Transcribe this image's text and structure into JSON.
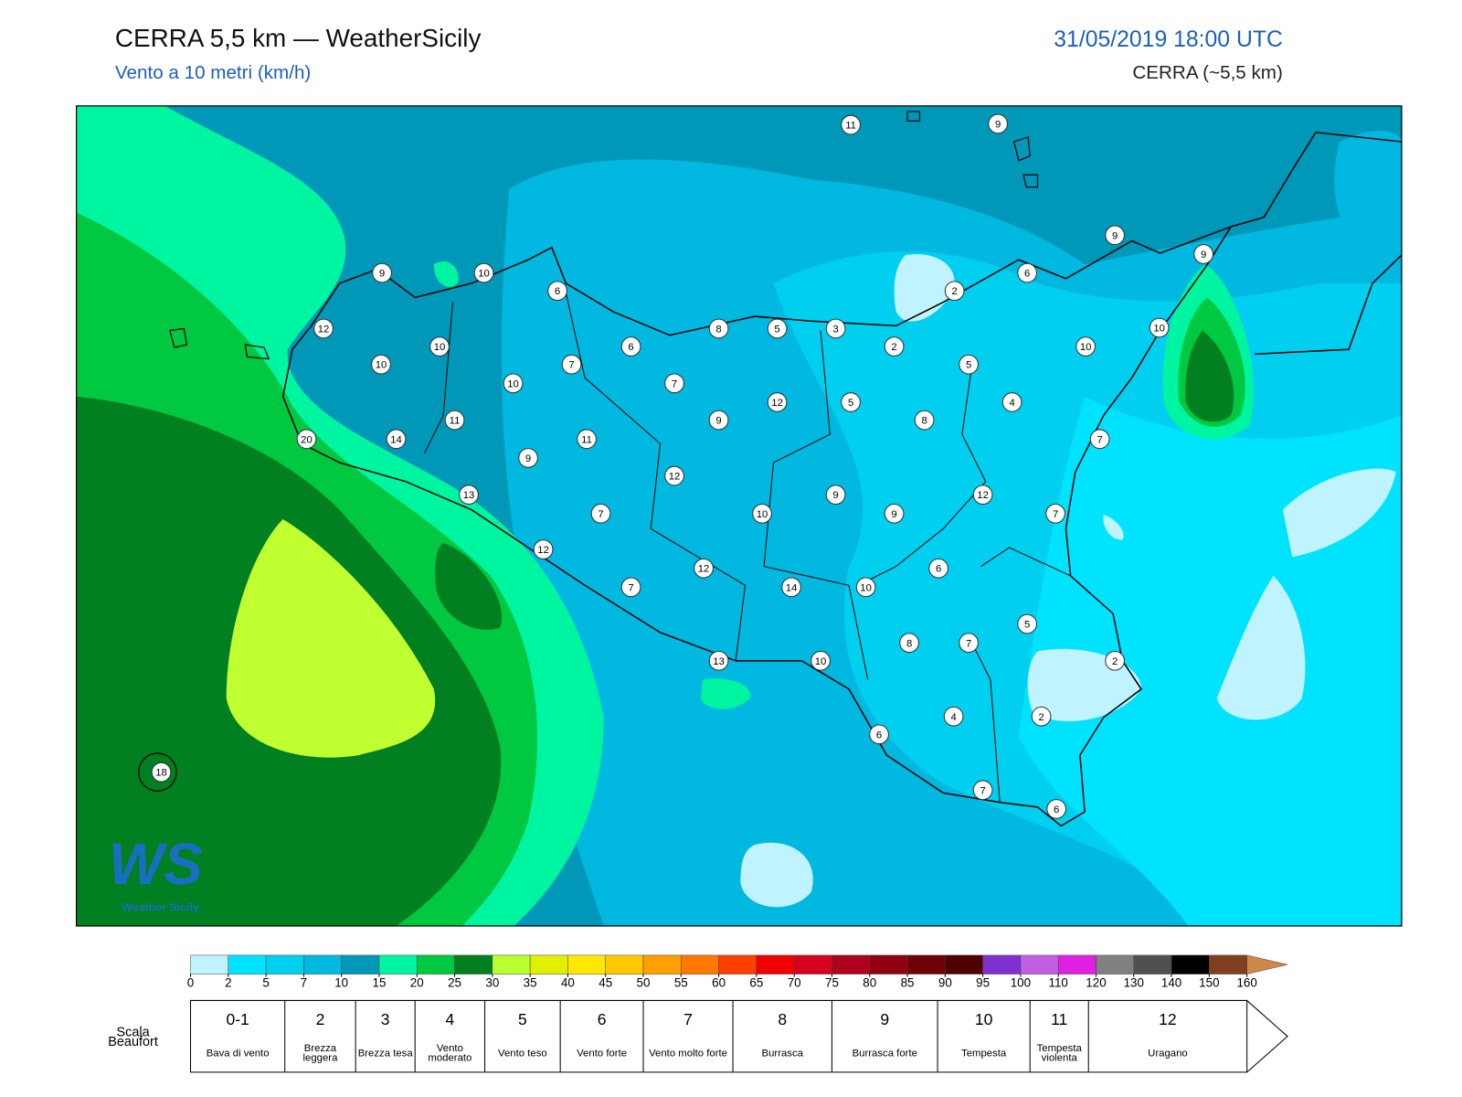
{
  "header": {
    "title": "CERRA 5,5 km — WeatherSicily",
    "subtitle": "Vento a 10 metri (km/h)",
    "date": "31/05/2019 18:00 UTC",
    "model": "CERRA (~5,5 km)"
  },
  "map": {
    "stations": [
      11,
      9,
      9,
      9,
      6,
      2,
      9,
      10,
      6,
      12,
      8,
      5,
      3,
      10,
      2,
      10,
      10,
      10,
      7,
      6,
      5,
      10,
      7,
      12,
      5,
      4,
      9,
      8,
      11,
      20,
      14,
      11,
      7,
      9,
      12,
      13,
      9,
      12,
      7,
      10,
      9,
      7,
      12,
      6,
      12,
      7,
      14,
      10,
      5,
      8,
      7,
      13,
      10,
      2,
      4,
      2,
      6,
      7,
      6,
      18
    ],
    "logo": {
      "mark": "WS",
      "text": "Weather Sicily"
    }
  },
  "colorbar": {
    "levels": [
      0,
      2,
      5,
      7,
      10,
      15,
      20,
      25,
      30,
      35,
      40,
      45,
      50,
      55,
      60,
      65,
      70,
      75,
      80,
      85,
      90,
      95,
      100,
      110,
      120,
      130,
      140,
      150,
      160
    ],
    "colors": [
      "#bff3ff",
      "#00e3ff",
      "#00cfef",
      "#00b8e0",
      "#0098b8",
      "#00f5a0",
      "#00c840",
      "#008020",
      "#b8ff30",
      "#e0f000",
      "#ffe800",
      "#ffc800",
      "#ffa000",
      "#ff7800",
      "#ff4000",
      "#f00000",
      "#d80020",
      "#b00020",
      "#900010",
      "#700008",
      "#500000",
      "#8030d0",
      "#c060e0",
      "#e020e0",
      "#808080",
      "#505050",
      "#000000",
      "#804020"
    ],
    "over_color": "#d08848"
  },
  "beaufort": {
    "label": "Scala Beaufort",
    "forces": [
      {
        "force": "0-1",
        "description": "Bava di vento"
      },
      {
        "force": 2,
        "description": "Brezza leggera"
      },
      {
        "force": 3,
        "description": "Brezza tesa"
      },
      {
        "force": 4,
        "description": "Vento moderato"
      },
      {
        "force": 5,
        "description": "Vento teso"
      },
      {
        "force": 6,
        "description": "Vento forte"
      },
      {
        "force": 7,
        "description": "Vento molto forte"
      },
      {
        "force": 8,
        "description": "Burrasca"
      },
      {
        "force": 9,
        "description": "Burrasca forte"
      },
      {
        "force": 10,
        "description": "Tempesta"
      },
      {
        "force": 11,
        "description": "Tempesta violenta"
      },
      {
        "force": 12,
        "description": "Uragano"
      }
    ]
  }
}
